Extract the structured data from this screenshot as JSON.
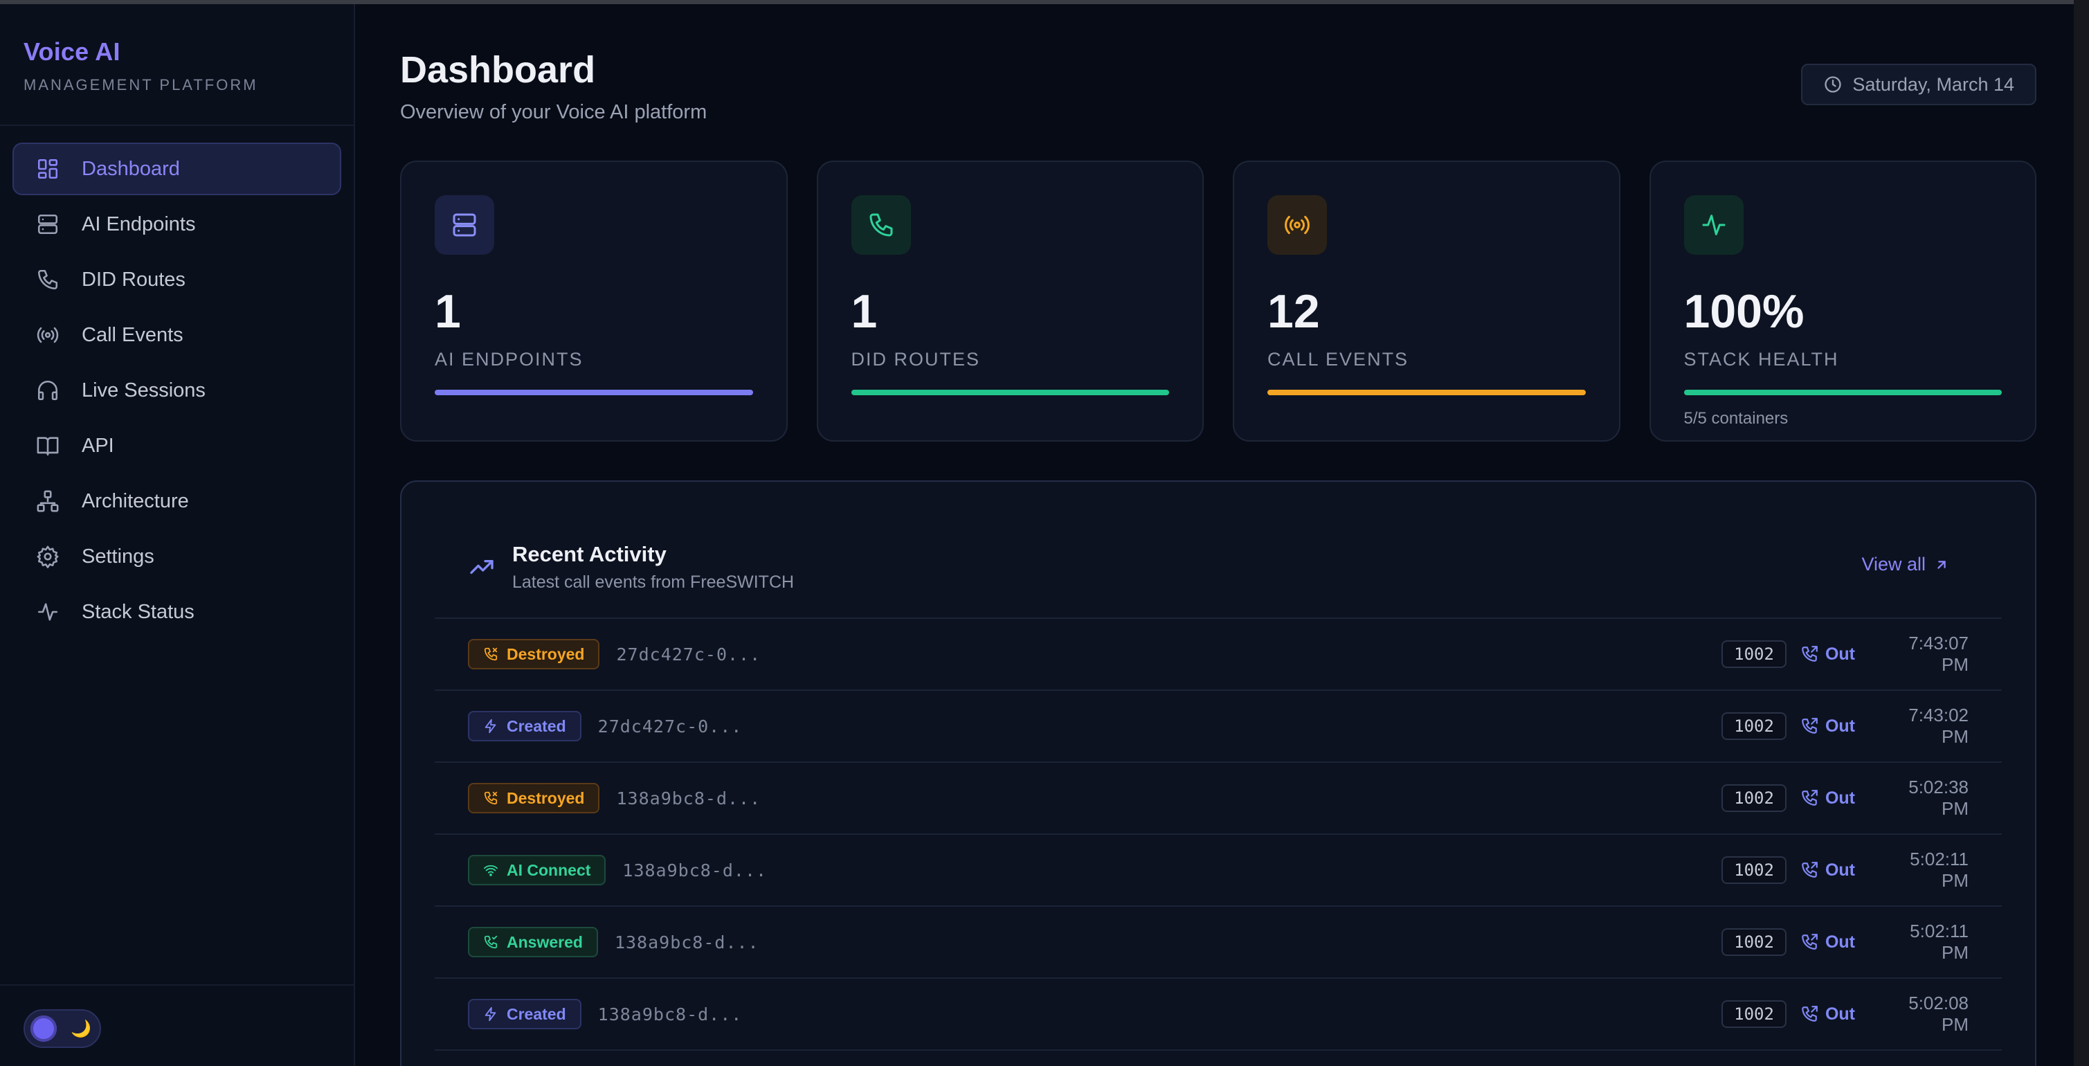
{
  "brand": {
    "name": "Voice AI",
    "subtitle": "MANAGEMENT PLATFORM"
  },
  "sidebar": {
    "items": [
      {
        "label": "Dashboard",
        "icon": "dashboard-icon",
        "active": true
      },
      {
        "label": "AI Endpoints",
        "icon": "server-icon",
        "active": false
      },
      {
        "label": "DID Routes",
        "icon": "phone-icon",
        "active": false
      },
      {
        "label": "Call Events",
        "icon": "radio-icon",
        "active": false
      },
      {
        "label": "Live Sessions",
        "icon": "headphones-icon",
        "active": false
      },
      {
        "label": "API",
        "icon": "book-icon",
        "active": false
      },
      {
        "label": "Architecture",
        "icon": "network-icon",
        "active": false
      },
      {
        "label": "Settings",
        "icon": "gear-icon",
        "active": false
      },
      {
        "label": "Stack Status",
        "icon": "activity-icon",
        "active": false
      }
    ],
    "theme_toggle": {
      "icon": "moon-icon",
      "glyph": "🌙"
    }
  },
  "header": {
    "title": "Dashboard",
    "subtitle": "Overview of your Voice AI platform",
    "date": "Saturday, March 14"
  },
  "cards": [
    {
      "value": "1",
      "label": "AI ENDPOINTS",
      "icon": "server-icon",
      "color": "#7c7cf2",
      "icon_bg": "#1b2143",
      "note": ""
    },
    {
      "value": "1",
      "label": "DID ROUTES",
      "icon": "phone-icon",
      "color": "#22c58b",
      "icon_bg": "#0f2a26",
      "note": ""
    },
    {
      "value": "12",
      "label": "CALL EVENTS",
      "icon": "radio-icon",
      "color": "#f5a524",
      "icon_bg": "#2a2218",
      "note": ""
    },
    {
      "value": "100%",
      "label": "STACK HEALTH",
      "icon": "activity-icon",
      "color": "#22c58b",
      "icon_bg": "#0f2a26",
      "note": "5/5 containers"
    }
  ],
  "activity": {
    "title": "Recent Activity",
    "subtitle": "Latest call events from FreeSWITCH",
    "view_all": "View all",
    "rows": [
      {
        "event": "Destroyed",
        "type": "destroyed",
        "id": "27dc427c-0...",
        "ext": "1002",
        "dir": "Out",
        "time": "7:43:07 PM"
      },
      {
        "event": "Created",
        "type": "created",
        "id": "27dc427c-0...",
        "ext": "1002",
        "dir": "Out",
        "time": "7:43:02 PM"
      },
      {
        "event": "Destroyed",
        "type": "destroyed",
        "id": "138a9bc8-d...",
        "ext": "1002",
        "dir": "Out",
        "time": "5:02:38 PM"
      },
      {
        "event": "AI Connect",
        "type": "aiconnect",
        "id": "138a9bc8-d...",
        "ext": "1002",
        "dir": "Out",
        "time": "5:02:11 PM"
      },
      {
        "event": "Answered",
        "type": "answered",
        "id": "138a9bc8-d...",
        "ext": "1002",
        "dir": "Out",
        "time": "5:02:11 PM"
      },
      {
        "event": "Created",
        "type": "created",
        "id": "138a9bc8-d...",
        "ext": "1002",
        "dir": "Out",
        "time": "5:02:08 PM"
      }
    ]
  }
}
